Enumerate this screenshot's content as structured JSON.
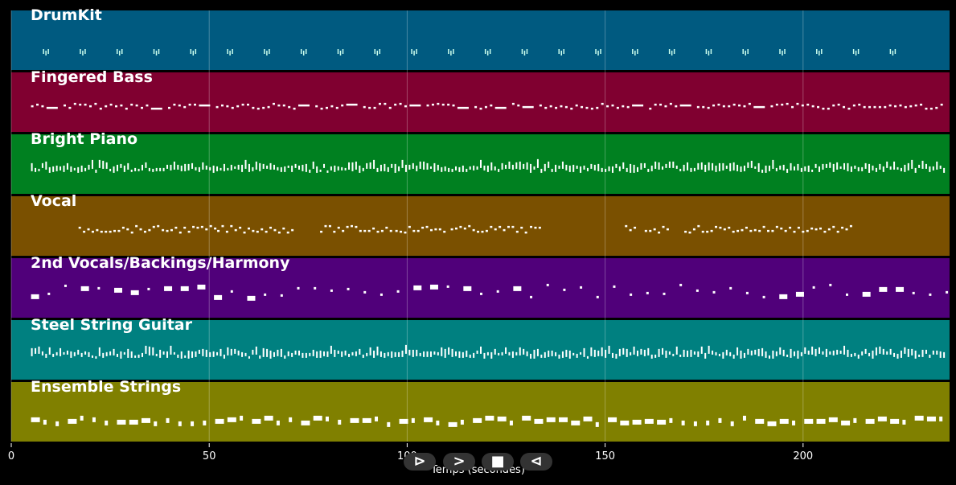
{
  "x_axis": {
    "label": "Temps (secondes)",
    "range": [
      0,
      237
    ],
    "ticks": [
      0,
      50,
      100,
      150,
      200
    ]
  },
  "tracks": [
    {
      "name": "DrumKit",
      "color": "#005a80",
      "pattern": "drums"
    },
    {
      "name": "Fingered Bass",
      "color": "#800030",
      "pattern": "bass"
    },
    {
      "name": "Bright Piano",
      "color": "#008020",
      "pattern": "dense"
    },
    {
      "name": "Vocal",
      "color": "#7a5000",
      "pattern": "vocal"
    },
    {
      "name": "2nd Vocals/Backings/Harmony",
      "color": "#50007a",
      "pattern": "backing"
    },
    {
      "name": "Steel String Guitar",
      "color": "#008080",
      "pattern": "dense"
    },
    {
      "name": "Ensemble Strings",
      "color": "#808000",
      "pattern": "strings"
    }
  ],
  "controls": [
    {
      "name": "play-button",
      "glyph": "⊳"
    },
    {
      "name": "forward-button",
      "glyph": ">"
    },
    {
      "name": "stop-button",
      "glyph": "■"
    },
    {
      "name": "back-button",
      "glyph": "⊲"
    }
  ]
}
